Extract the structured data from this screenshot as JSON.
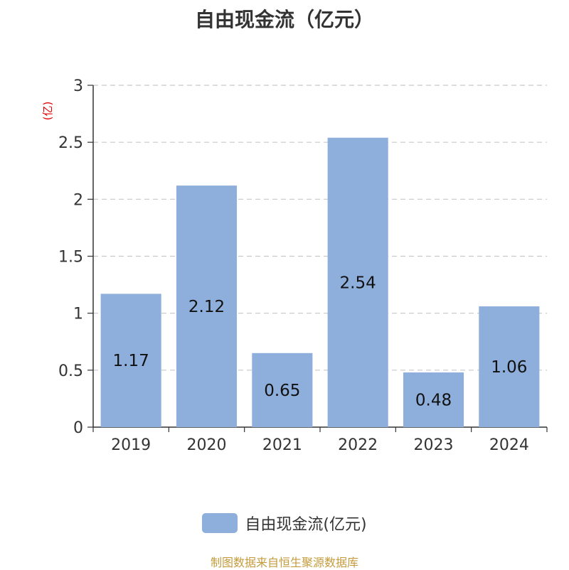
{
  "chart_data": {
    "type": "bar",
    "title": "自由现金流（亿元）",
    "ylabel": "(亿)",
    "categories": [
      "2019",
      "2020",
      "2021",
      "2022",
      "2023",
      "2024"
    ],
    "series": [
      {
        "name": "自由现金流(亿元)",
        "values": [
          1.17,
          2.12,
          0.65,
          2.54,
          0.48,
          1.06
        ]
      }
    ],
    "ylim": [
      0,
      3
    ],
    "yticks": [
      "0",
      "0.5",
      "1",
      "1.5",
      "2",
      "2.5",
      "3"
    ],
    "grid": true,
    "legend": "bottom-center",
    "colors": {
      "bar": "#8eaedb",
      "ylabel": "#e00000",
      "source": "#c49b3c"
    }
  },
  "footer": {
    "source": "制图数据来自恒生聚源数据库"
  }
}
